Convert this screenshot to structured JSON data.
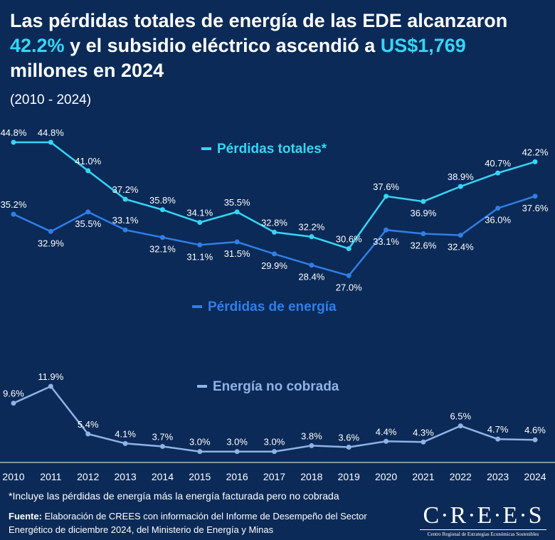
{
  "header": {
    "title_part1": "Las pérdidas totales de energía de las EDE alcanzaron",
    "title_hl1": "42.2%",
    "title_part2": " y el subsidio eléctrico ascendió a ",
    "title_hl2": "US$1,769",
    "title_part3": "millones en 2024",
    "subtitle": "(2010 - 2024)"
  },
  "chart_data": {
    "type": "line",
    "x": [
      "2010",
      "2011",
      "2012",
      "2013",
      "2014",
      "2015",
      "2016",
      "2017",
      "2018",
      "2019",
      "2020",
      "2021",
      "2022",
      "2023",
      "2024"
    ],
    "series": [
      {
        "name": "Pérdidas totales*",
        "color": "#35d6f5",
        "values": [
          44.8,
          44.8,
          41.0,
          37.2,
          35.8,
          34.1,
          35.5,
          32.8,
          32.2,
          30.6,
          37.6,
          36.9,
          38.9,
          40.7,
          42.2
        ],
        "labels": [
          "44.8%",
          "44.8%",
          "41.0%",
          "37.2%",
          "35.8%",
          "34.1%",
          "35.5%",
          "32.8%",
          "32.2%",
          "30.6%",
          "37.6%",
          "36.9%",
          "38.9%",
          "40.7%",
          "42.2%"
        ]
      },
      {
        "name": "Pérdidas de energía",
        "color": "#2f7fe6",
        "values": [
          35.2,
          32.9,
          35.5,
          33.1,
          32.1,
          31.1,
          31.5,
          29.9,
          28.4,
          27.0,
          33.1,
          32.6,
          32.4,
          36.0,
          37.6
        ],
        "labels": [
          "35.2%",
          "32.9%",
          "35.5%",
          "33.1%",
          "32.1%",
          "31.1%",
          "31.5%",
          "29.9%",
          "28.4%",
          "27.0%",
          "33.1%",
          "32.6%",
          "32.4%",
          "36.0%",
          "37.6%"
        ]
      },
      {
        "name": "Energía no cobrada",
        "color": "#8fb3e6",
        "values": [
          9.6,
          11.9,
          5.4,
          4.1,
          3.7,
          3.0,
          3.0,
          3.0,
          3.8,
          3.6,
          4.4,
          4.3,
          6.5,
          4.7,
          4.6
        ],
        "labels": [
          "9.6%",
          "11.9%",
          "5.4%",
          "4.1%",
          "3.7%",
          "3.0%",
          "3.0%",
          "3.0%",
          "3.8%",
          "3.6%",
          "4.4%",
          "4.3%",
          "6.5%",
          "4.7%",
          "4.6%"
        ]
      }
    ],
    "grid": false
  },
  "footer": {
    "footnote": "*Incluye las pérdidas de energía más la energía facturada pero no cobrada",
    "source_label": "Fuente:",
    "source_text": " Elaboración de CREES con información del Informe de Desempeño del Sector Energético de diciembre 2024, del Ministerio de Energía y Minas",
    "logo_word": "C·R·E·E·S",
    "logo_tagline": "Centro Regional de Estrategias Económicas Sostenibles"
  }
}
